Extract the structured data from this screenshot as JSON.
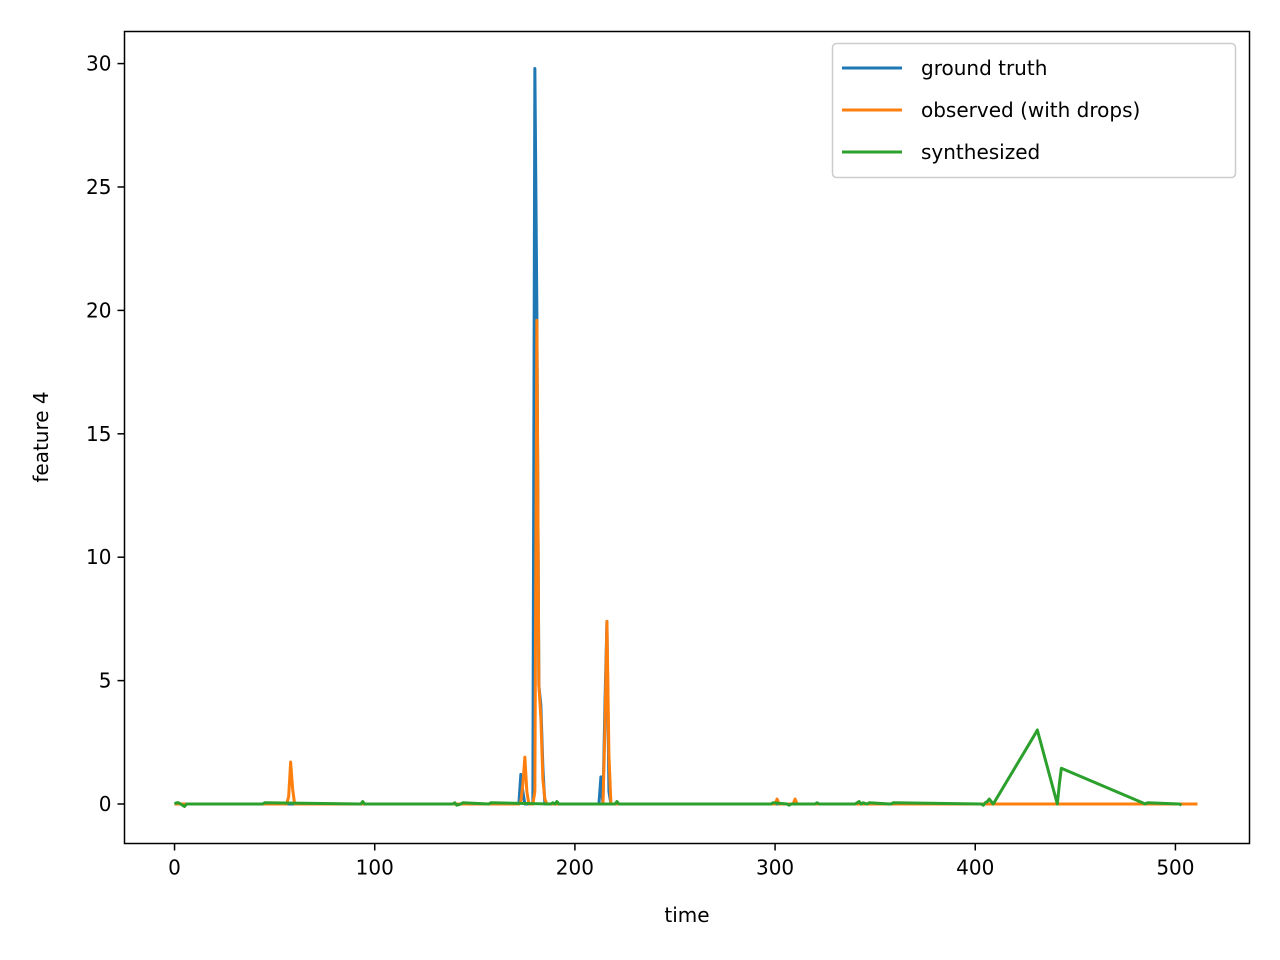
{
  "chart_data": {
    "type": "line",
    "xlabel": "time",
    "ylabel": "feature 4",
    "xlim": [
      -25,
      537
    ],
    "ylim": [
      -1.6,
      31.3
    ],
    "xticks": [
      0,
      100,
      200,
      300,
      400,
      500
    ],
    "yticks": [
      0,
      5,
      10,
      15,
      20,
      25,
      30
    ],
    "grid": false,
    "legend_position": "top-right",
    "series": [
      {
        "name": "ground truth",
        "color": "#1f77b4",
        "x": [
          0,
          172,
          173,
          174,
          175,
          176,
          178,
          179,
          180,
          181,
          182,
          183,
          184,
          185,
          186,
          187,
          188,
          211,
          212,
          213,
          214,
          215,
          216,
          217,
          218,
          219,
          511
        ],
        "y": [
          0,
          0,
          1.2,
          0.5,
          0,
          0,
          0,
          0,
          29.8,
          20.0,
          4.8,
          4.0,
          1.5,
          0,
          0,
          0,
          0,
          0,
          0,
          1.1,
          0,
          4.0,
          7.4,
          0.5,
          0,
          0,
          0
        ]
      },
      {
        "name": "observed (with drops)",
        "color": "#ff7f0e",
        "x": [
          0,
          56,
          57,
          58,
          59,
          60,
          61,
          172,
          173,
          174,
          175,
          176,
          177,
          178,
          179,
          180,
          181,
          182,
          183,
          184,
          185,
          186,
          187,
          188,
          212,
          213,
          214,
          215,
          216,
          217,
          218,
          219,
          300,
          301,
          302,
          303,
          309,
          310,
          311,
          312,
          511
        ],
        "y": [
          0,
          0,
          0.3,
          1.7,
          0.6,
          0,
          0,
          0,
          0.1,
          0.8,
          1.9,
          0.5,
          0,
          0,
          0,
          0.5,
          19.6,
          4.8,
          3.5,
          1.0,
          0.2,
          0,
          0,
          0,
          0,
          0,
          0,
          3.0,
          7.4,
          2.0,
          0,
          0,
          0,
          0.2,
          0,
          0,
          0,
          0.2,
          0,
          0,
          0
        ]
      },
      {
        "name": "synthesized",
        "color": "#2ca02c",
        "x": [
          0,
          1,
          2,
          3,
          4,
          5,
          6,
          44,
          45,
          93,
          94,
          95,
          139,
          140,
          141,
          143,
          144,
          157,
          158,
          188,
          189,
          190,
          191,
          192,
          220,
          221,
          222,
          298,
          299,
          306,
          307,
          308,
          320,
          321,
          322,
          340,
          341,
          342,
          343,
          344,
          346,
          347,
          358,
          359,
          403,
          404,
          405,
          406,
          407,
          408,
          409,
          430,
          431,
          441,
          442,
          443,
          485,
          486,
          502,
          503
        ],
        "y": [
          0,
          0.05,
          0.05,
          0,
          -0.05,
          -0.1,
          0,
          0,
          0.05,
          0,
          0.1,
          0,
          0,
          0.05,
          -0.05,
          0,
          0.05,
          0,
          0.05,
          0,
          0.05,
          0,
          0.1,
          0,
          0,
          0.1,
          0,
          0,
          0.05,
          0,
          -0.05,
          0,
          0,
          0.05,
          0,
          0,
          0.05,
          0.1,
          0,
          0.05,
          0,
          0.05,
          0,
          0.05,
          0,
          -0.05,
          0.05,
          0.1,
          0.2,
          0.1,
          0,
          2.85,
          3.0,
          0,
          0.8,
          1.45,
          0,
          0.05,
          0,
          -0.05
        ]
      }
    ]
  }
}
